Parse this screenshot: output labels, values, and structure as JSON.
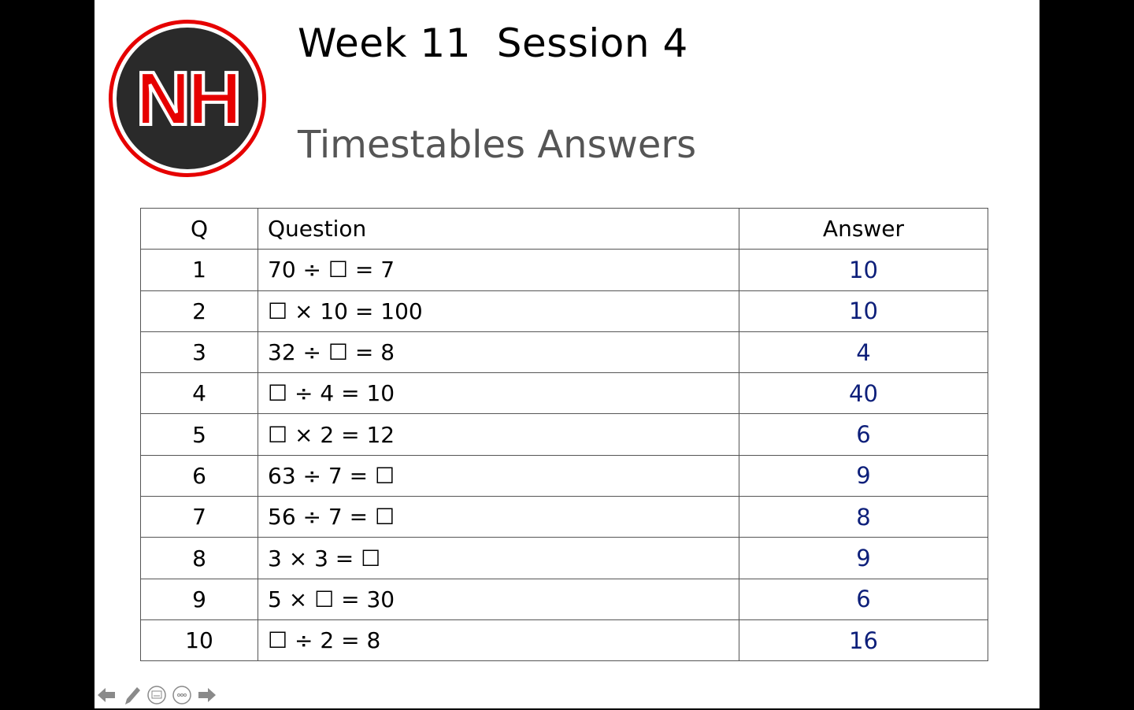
{
  "slide": {
    "title": "Week 11  Session 4",
    "subtitle": "Timestables Answers",
    "logo_text": "NH",
    "colors": {
      "answer": "#0d1f7a",
      "logo_red": "#e60000",
      "logo_dark": "#2a2a2a"
    }
  },
  "table": {
    "headers": [
      "Q",
      "Question",
      "Answer"
    ],
    "rows": [
      {
        "q": "1",
        "question": "70 ÷ ☐ = 7",
        "answer": "10"
      },
      {
        "q": "2",
        "question": "☐ × 10 = 100",
        "answer": "10"
      },
      {
        "q": "3",
        "question": "32 ÷ ☐ = 8",
        "answer": "4"
      },
      {
        "q": "4",
        "question": "☐ ÷ 4 = 10",
        "answer": "40"
      },
      {
        "q": "5",
        "question": "☐ × 2 = 12",
        "answer": "6"
      },
      {
        "q": "6",
        "question": "63 ÷ 7 = ☐",
        "answer": "9"
      },
      {
        "q": "7",
        "question": "56 ÷ 7 = ☐",
        "answer": "8"
      },
      {
        "q": "8",
        "question": "3 × 3 = ☐",
        "answer": "9"
      },
      {
        "q": "9",
        "question": "5 × ☐ = 30",
        "answer": "6"
      },
      {
        "q": "10",
        "question": "☐ ÷ 2 = 8",
        "answer": "16"
      }
    ]
  },
  "controls": [
    "previous-slide",
    "pen",
    "subtitles",
    "more-options",
    "next-slide"
  ]
}
